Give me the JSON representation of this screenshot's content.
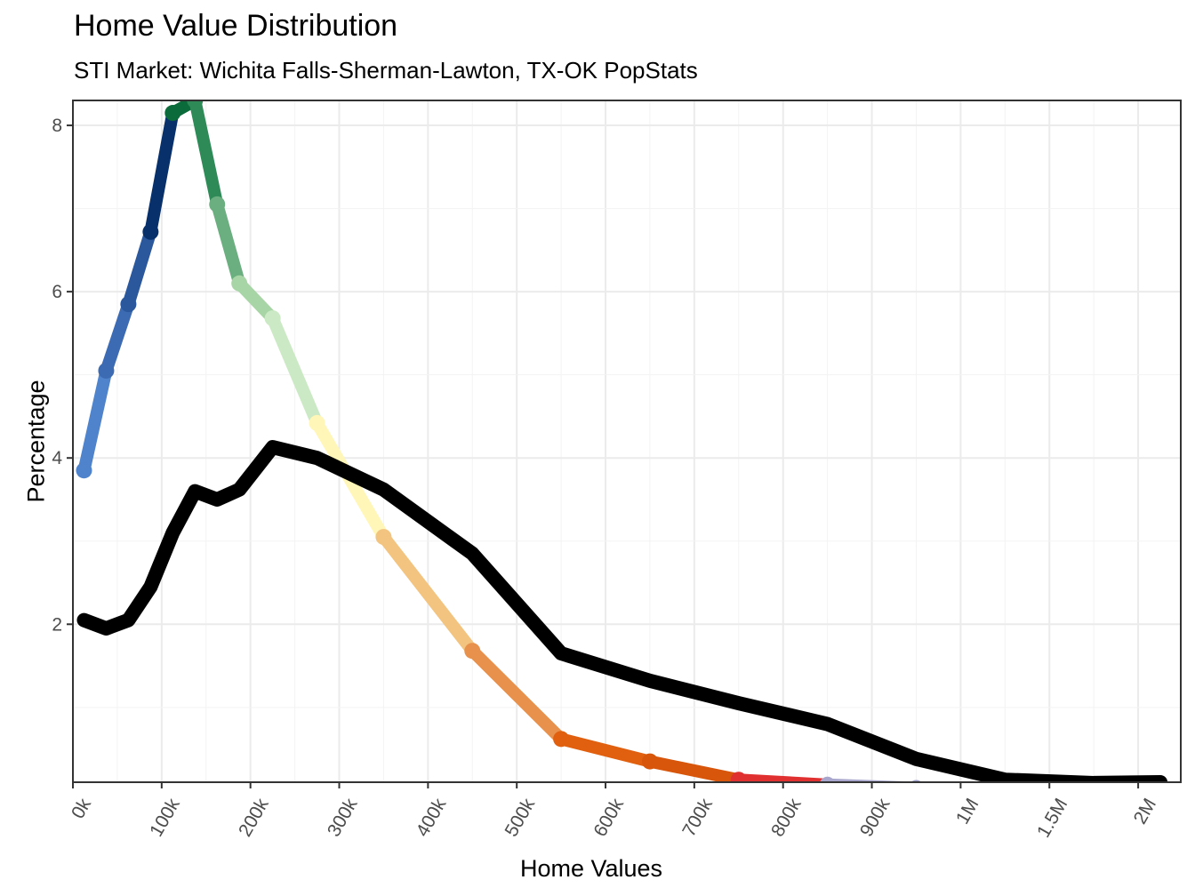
{
  "chart_data": {
    "type": "line",
    "title": "Home Value Distribution",
    "subtitle": "STI Market: Wichita Falls-Sherman-Lawton, TX-OK PopStats",
    "xlabel": "Home Values",
    "ylabel": "Percentage",
    "x_tick_labels": [
      "0k",
      "100k",
      "200k",
      "300k",
      "400k",
      "500k",
      "600k",
      "700k",
      "800k",
      "900k",
      "1M",
      "1.5M",
      "2M"
    ],
    "y_ticks": [
      2,
      4,
      6,
      8
    ],
    "ylim": [
      0.1,
      8.3
    ],
    "grid": true,
    "x_positions": [
      0.125,
      0.375,
      0.625,
      0.875,
      1.125,
      1.375,
      1.625,
      1.875,
      2.25,
      2.75,
      3.5,
      4.5,
      5.5,
      6.5,
      7.5,
      8.5,
      9.5,
      10.5,
      11.5,
      12.25
    ],
    "series": [
      {
        "style": "gradient",
        "values": [
          3.85,
          5.05,
          5.85,
          6.72,
          8.15,
          8.3,
          7.05,
          6.1,
          5.68,
          4.42,
          3.05,
          1.68,
          0.62,
          0.35,
          0.13,
          0.07,
          0.03,
          0.01,
          0.01,
          0.01
        ],
        "colors": [
          "#4f83cc",
          "#3d6bb3",
          "#2b579c",
          "#08306b",
          "#0b6b3a",
          "#2e8b57",
          "#6bae7f",
          "#a8d5a5",
          "#cbe9c4",
          "#fff6b7",
          "#f2c47f",
          "#e8914c",
          "#e0600f",
          "#d7560c",
          "#e03030",
          "#a8a6cc",
          "#9c9cc8",
          "#7b67ad",
          "#6a51a3",
          "#5a3f94"
        ]
      },
      {
        "style": "black",
        "color": "#000000",
        "values": [
          2.05,
          1.95,
          2.05,
          2.45,
          3.1,
          3.6,
          3.5,
          3.62,
          4.13,
          4.0,
          3.62,
          2.85,
          1.65,
          1.32,
          1.05,
          0.8,
          0.38,
          0.13,
          0.09,
          0.1
        ]
      }
    ]
  }
}
